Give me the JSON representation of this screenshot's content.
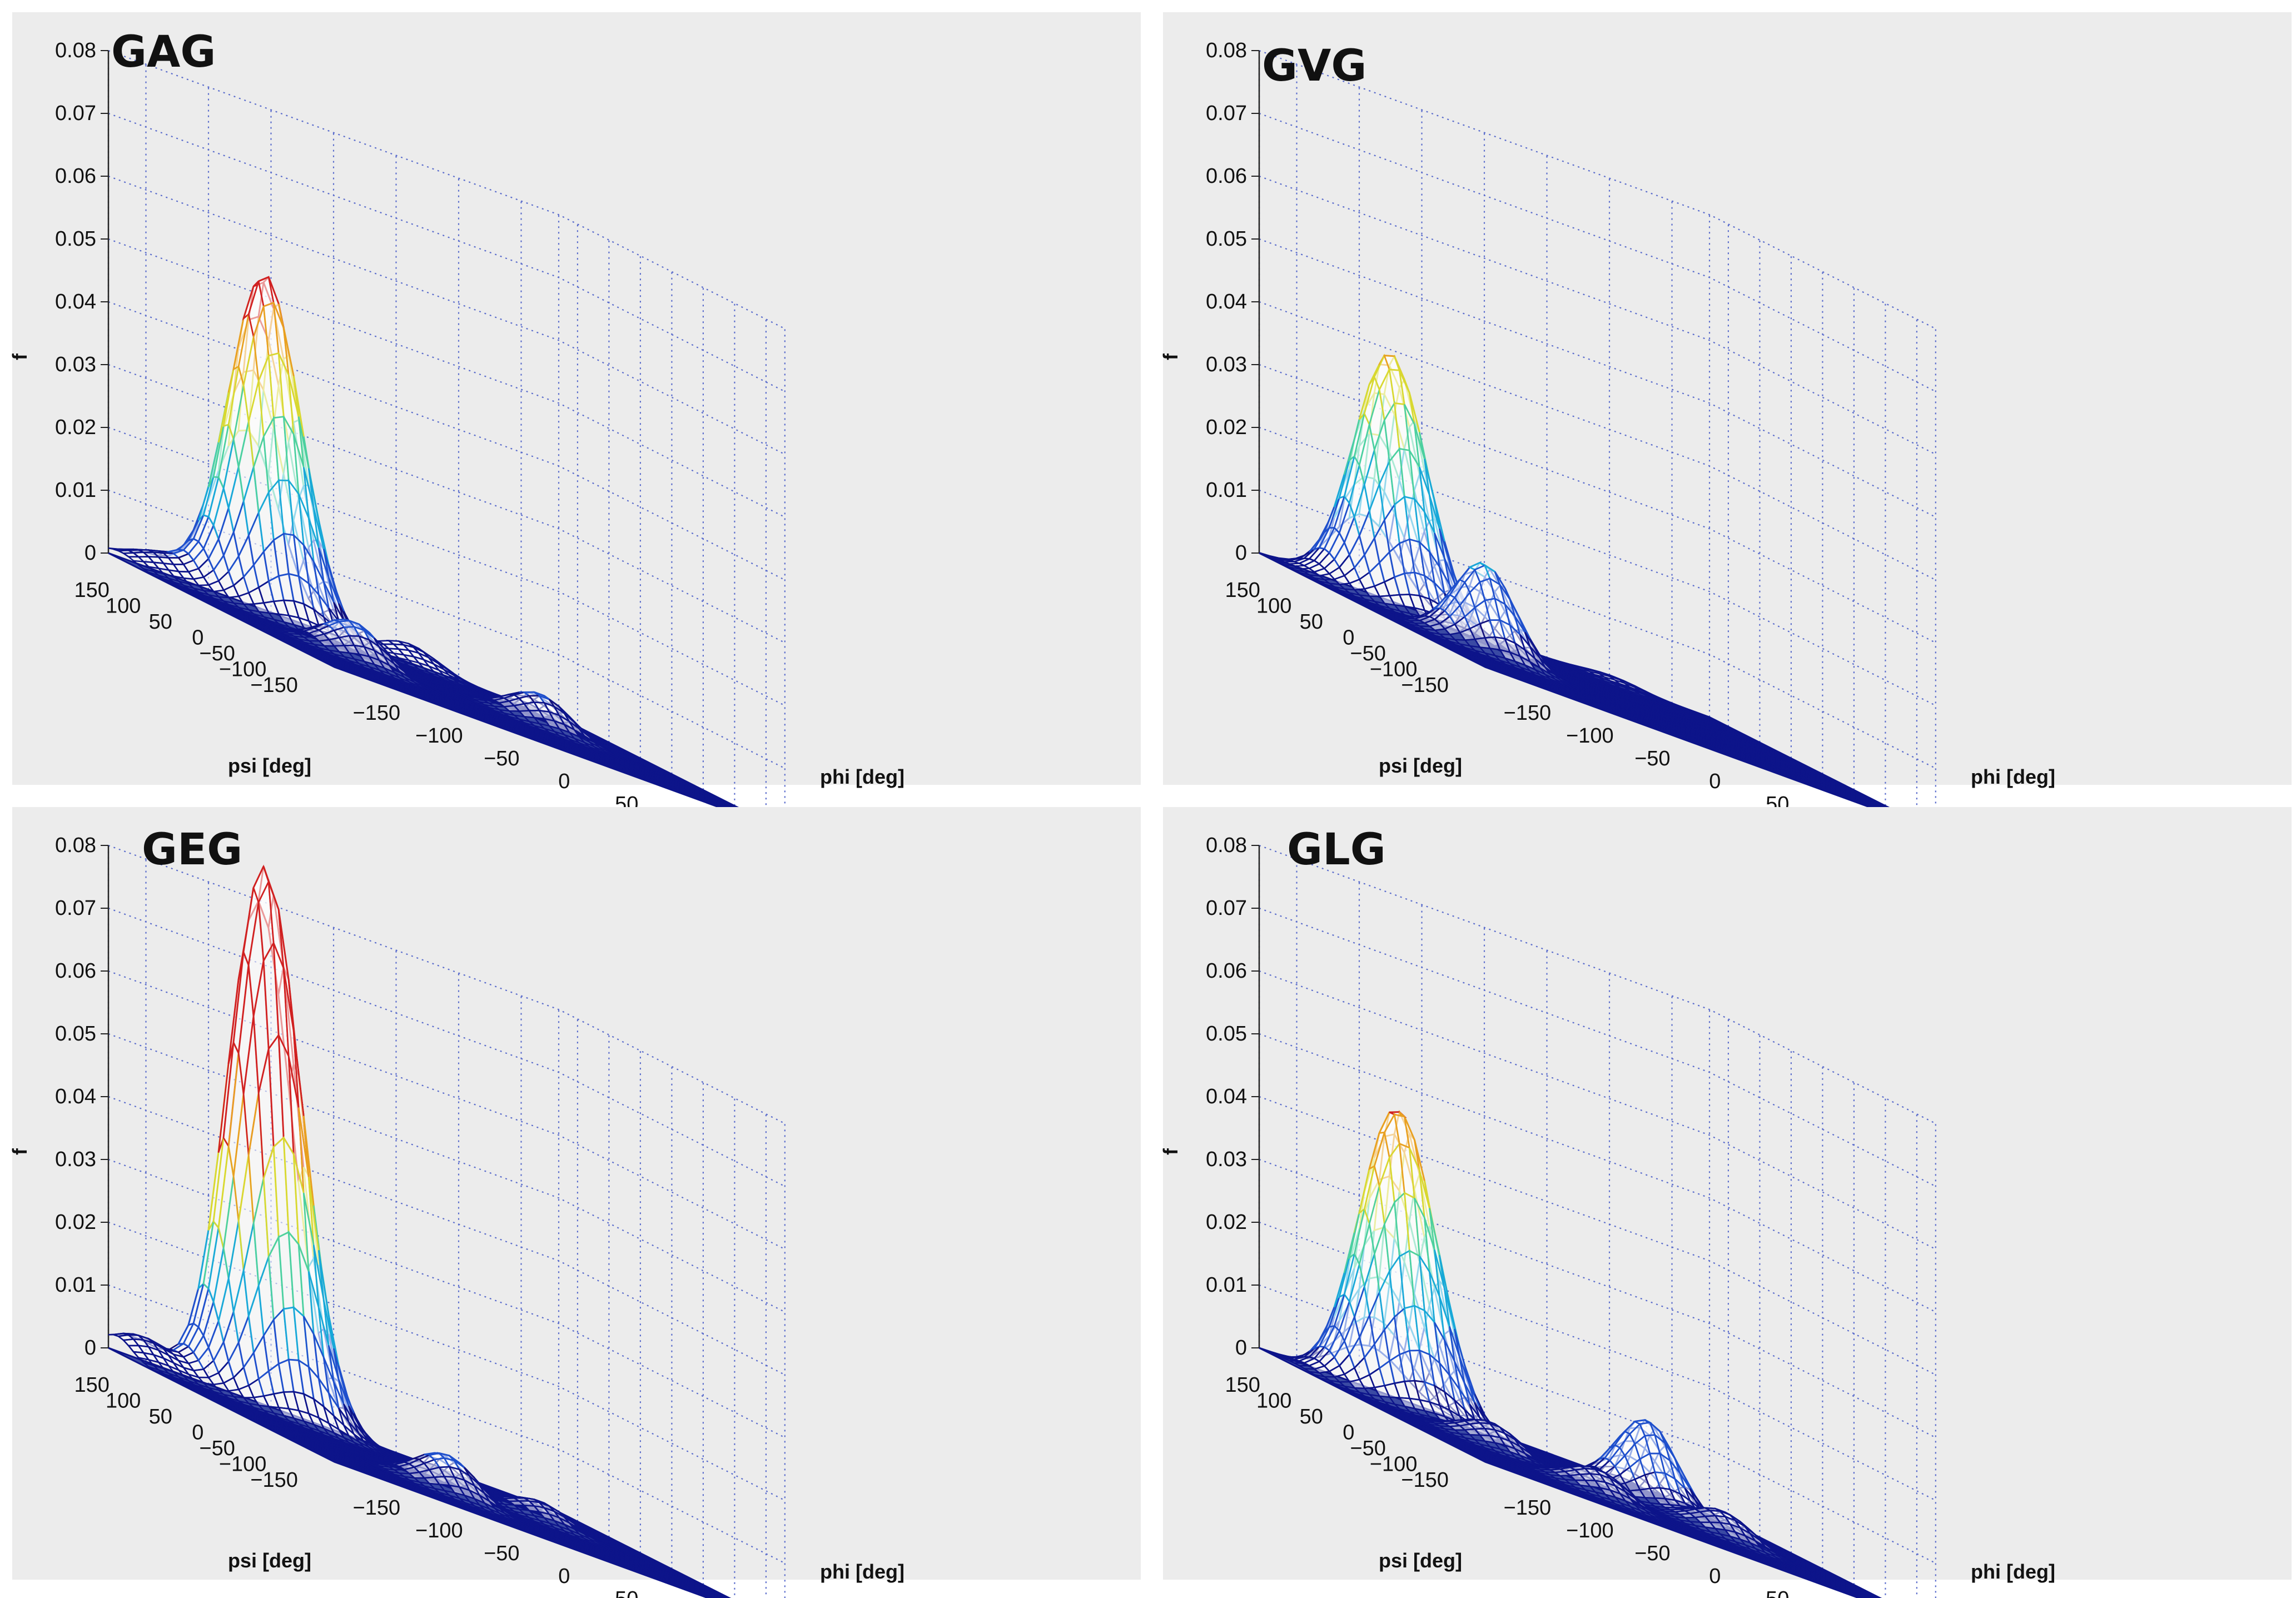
{
  "chart_data": [
    {
      "type": "surface3d",
      "title": "GAG",
      "xlabel": "phi [deg]",
      "ylabel": "psi [deg]",
      "zlabel": "f",
      "xlim": [
        -180,
        180
      ],
      "ylim": [
        -180,
        180
      ],
      "zlim": [
        0,
        0.08
      ],
      "x_ticks": [
        -150,
        -100,
        -50,
        0,
        50,
        100,
        150
      ],
      "y_ticks": [
        -150,
        -100,
        -50,
        0,
        50,
        100,
        150
      ],
      "z_ticks": [
        "0",
        "0.01",
        "0.02",
        "0.03",
        "0.04",
        "0.05",
        "0.06",
        "0.07",
        "0.08"
      ],
      "peaks": [
        {
          "phi": -70,
          "psi": 150,
          "f": 0.054
        },
        {
          "phi": -150,
          "psi": 160,
          "f": 0.003
        },
        {
          "phi": -80,
          "psi": -10,
          "f": 0.006
        },
        {
          "phi": 80,
          "psi": 10,
          "f": 0.005
        },
        {
          "phi": 60,
          "psi": 180,
          "f": 0.003
        }
      ]
    },
    {
      "type": "surface3d",
      "title": "GVG",
      "xlabel": "phi [deg]",
      "ylabel": "psi [deg]",
      "zlabel": "f",
      "xlim": [
        -180,
        180
      ],
      "ylim": [
        -180,
        180
      ],
      "zlim": [
        0,
        0.08
      ],
      "x_ticks": [
        -150,
        -100,
        -50,
        0,
        50,
        100,
        150
      ],
      "y_ticks": [
        -150,
        -100,
        -50,
        0,
        50,
        100,
        150
      ],
      "z_ticks": [
        "0",
        "0.01",
        "0.02",
        "0.03",
        "0.04",
        "0.05",
        "0.06",
        "0.07",
        "0.08"
      ],
      "peaks": [
        {
          "phi": -95,
          "psi": 140,
          "f": 0.04
        },
        {
          "phi": -90,
          "psi": 0,
          "f": 0.014
        },
        {
          "phi": 100,
          "psi": 170,
          "f": 0.001
        }
      ]
    },
    {
      "type": "surface3d",
      "title": "GEG",
      "xlabel": "phi [deg]",
      "ylabel": "psi [deg]",
      "zlabel": "f",
      "xlim": [
        -180,
        180
      ],
      "ylim": [
        -180,
        180
      ],
      "zlim": [
        0,
        0.08
      ],
      "x_ticks": [
        -150,
        -100,
        -50,
        0,
        50,
        100,
        150
      ],
      "y_ticks": [
        -150,
        -100,
        -50,
        0,
        50,
        100,
        150
      ],
      "z_ticks": [
        "0",
        "0.01",
        "0.02",
        "0.03",
        "0.04",
        "0.05",
        "0.06",
        "0.07",
        "0.08"
      ],
      "peaks": [
        {
          "phi": -60,
          "psi": 170,
          "f": 0.086
        },
        {
          "phi": -160,
          "psi": 165,
          "f": 0.004
        },
        {
          "phi": -30,
          "psi": -60,
          "f": 0.006
        },
        {
          "phi": 80,
          "psi": 10,
          "f": 0.003
        }
      ]
    },
    {
      "type": "surface3d",
      "title": "GLG",
      "xlabel": "phi [deg]",
      "ylabel": "psi [deg]",
      "zlabel": "f",
      "xlim": [
        -180,
        180
      ],
      "ylim": [
        -180,
        180
      ],
      "zlim": [
        0,
        0.08
      ],
      "x_ticks": [
        -150,
        -100,
        -50,
        0,
        50,
        100,
        150
      ],
      "y_ticks": [
        -150,
        -100,
        -50,
        0,
        50,
        100,
        150
      ],
      "z_ticks": [
        "0",
        "0.01",
        "0.02",
        "0.03",
        "0.04",
        "0.05",
        "0.06",
        "0.07",
        "0.08"
      ],
      "peaks": [
        {
          "phi": -90,
          "psi": 130,
          "f": 0.042
        },
        {
          "phi": -120,
          "psi": 120,
          "f": 0.012
        },
        {
          "phi": -80,
          "psi": 10,
          "f": 0.004
        },
        {
          "phi": 60,
          "psi": 40,
          "f": 0.013
        },
        {
          "phi": -40,
          "psi": -80,
          "f": 0.004
        },
        {
          "phi": 80,
          "psi": -40,
          "f": 0.004
        }
      ]
    }
  ],
  "colors": {
    "background": "#ffffff",
    "axes_bg": "#ececec",
    "grid": "#5a6ccc",
    "mesh": "#0d148a",
    "floor_fill": "#3a4aa3",
    "peak_fill": "#ffffff",
    "colormap": [
      "#13107a",
      "#1e4fcc",
      "#18a8d8",
      "#4bd0a0",
      "#d8d830",
      "#e8a020",
      "#d02020"
    ]
  }
}
